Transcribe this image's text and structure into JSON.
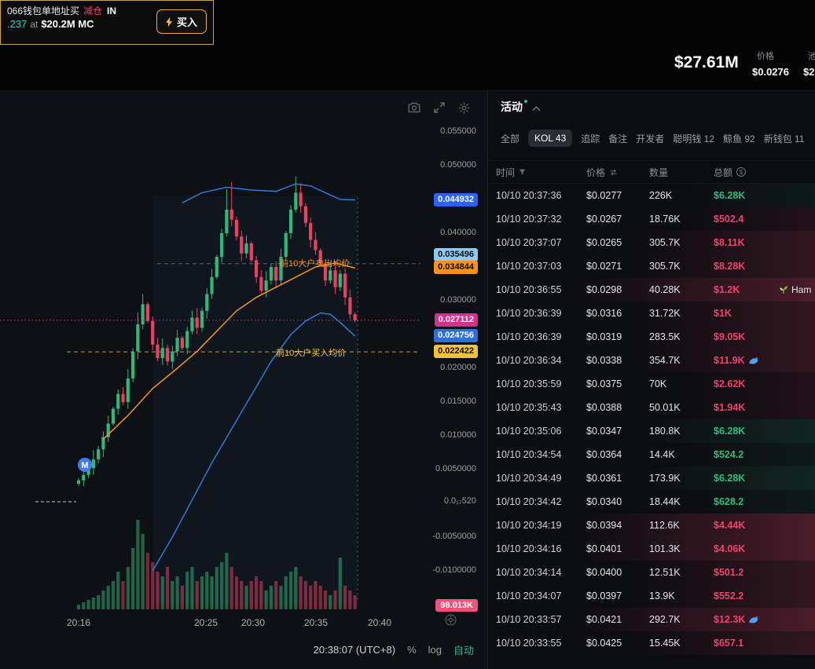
{
  "toast": {
    "line1_prefix": "066钱包单地址买",
    "line1_flag": "减仓",
    "line1_suffix": "IN",
    "line2_value": ".237",
    "line2_at": "at",
    "line2_mc": "$20.2M MC",
    "buy_label": "买入"
  },
  "stats": {
    "market_cap": "$27.61M",
    "price_label": "价格",
    "price_value": "$0.0276",
    "pool_label": "池",
    "pool_value": "$2"
  },
  "chart": {
    "y_ticks": [
      {
        "label": "0.055000",
        "price": 0.055
      },
      {
        "label": "0.050000",
        "price": 0.05
      },
      {
        "label": "0.040000",
        "price": 0.04
      },
      {
        "label": "0.030000",
        "price": 0.03
      },
      {
        "label": "0.020000",
        "price": 0.02
      },
      {
        "label": "0.015000",
        "price": 0.015
      },
      {
        "label": "0.010000",
        "price": 0.01
      },
      {
        "label": "0.0050000",
        "price": 0.005
      },
      {
        "label": "0.0₁₇520",
        "price": 0.0002
      },
      {
        "label": "-0.0050000",
        "price": -0.005
      },
      {
        "label": "-0.0100000",
        "price": -0.01
      }
    ],
    "price_badges": [
      {
        "label": "0.044932",
        "price": 0.044932,
        "bg": "#2962ff",
        "fg": "#ffffff",
        "dy": 0
      },
      {
        "label": "0.035496",
        "price": 0.035496,
        "bg": "#90c9f0",
        "fg": "#0b0e14",
        "dy": -11
      },
      {
        "label": "0.034844",
        "price": 0.034844,
        "bg": "#f7921e",
        "fg": "#0b0e14",
        "dy": 0
      },
      {
        "label": "0.027112",
        "price": 0.027112,
        "bg": "#d6308f",
        "fg": "#ffffff",
        "dy": 0
      },
      {
        "label": "0.024756",
        "price": 0.024756,
        "bg": "#2e6fd8",
        "fg": "#ffffff",
        "dy": 0
      },
      {
        "label": "0.022422",
        "price": 0.022422,
        "bg": "#f5c13d",
        "fg": "#0b0e14",
        "dy": 0
      }
    ],
    "volume_badge": "98.013K",
    "annotations": {
      "sell_avg": "前10大户卖出均价",
      "buy_avg": "前10大户买入均价"
    },
    "marker_label": "M",
    "x_ticks": [
      {
        "label": "20:16",
        "x": 100
      },
      {
        "label": "20:25",
        "x": 262
      },
      {
        "label": "20:30",
        "x": 322
      },
      {
        "label": "20:35",
        "x": 402
      },
      {
        "label": "20:40",
        "x": 483
      }
    ],
    "footer": {
      "clock": "20:38:07 (UTC+8)",
      "percent": "%",
      "log": "log",
      "auto": "自动"
    },
    "chart_data": {
      "type": "candlestick",
      "price_unit": "value/1000 = USD price",
      "open_first": 2.9,
      "closes": [
        3.4,
        4.2,
        5.2,
        6.5,
        8,
        9.8,
        11.8,
        14,
        16.2,
        15,
        18.5,
        22.5,
        26.5,
        29.5,
        27,
        23.5,
        21.5,
        23,
        21,
        22.5,
        24.5,
        23,
        25.5,
        27.5,
        26,
        28.5,
        31,
        33.5,
        36.5,
        40,
        43.5,
        42,
        39.5,
        37,
        38.5,
        36,
        33.5,
        31.5,
        33,
        35,
        33,
        36.5,
        40,
        43.5,
        46,
        44,
        41.5,
        39,
        37.5,
        35.5,
        33,
        34.5,
        32,
        34,
        30.5,
        28,
        27.1
      ],
      "volumes": [
        1,
        1.5,
        2,
        2.5,
        3,
        4,
        5,
        6,
        8,
        6,
        9,
        13,
        19,
        16,
        12,
        10,
        8,
        7,
        9,
        6,
        7,
        5,
        8,
        9,
        6,
        7,
        8,
        7,
        9,
        10,
        12,
        9,
        7,
        6,
        5,
        6,
        7,
        6,
        4,
        5,
        6,
        5,
        7,
        8,
        9,
        7,
        6,
        5,
        6,
        5,
        4,
        3,
        4,
        11,
        5,
        4,
        3
      ],
      "wick_overrides": {
        "12": 28.3,
        "13": 31.0,
        "30": 46.5,
        "31": 47.6,
        "44": 48.4
      },
      "lines": {
        "ma_orange": [
          [
            5,
            9.5
          ],
          [
            10,
            13
          ],
          [
            15,
            17
          ],
          [
            20,
            20
          ],
          [
            24,
            22.5
          ],
          [
            28,
            25.5
          ],
          [
            32,
            28.5
          ],
          [
            36,
            30.5
          ],
          [
            40,
            32
          ],
          [
            44,
            33.5
          ],
          [
            48,
            35
          ],
          [
            52,
            35.6
          ],
          [
            56,
            34.84
          ]
        ],
        "band_upper": [
          [
            21,
            44.5
          ],
          [
            25,
            46
          ],
          [
            30,
            46.8
          ],
          [
            35,
            46.4
          ],
          [
            40,
            46.2
          ],
          [
            44,
            47.3
          ],
          [
            47,
            47
          ],
          [
            50,
            46
          ],
          [
            53,
            45
          ],
          [
            56,
            44.93
          ]
        ],
        "band_lower": [
          [
            15,
            -10
          ],
          [
            19,
            -5
          ],
          [
            23,
            0.5
          ],
          [
            27,
            6
          ],
          [
            31,
            11
          ],
          [
            35,
            16
          ],
          [
            39,
            21
          ],
          [
            43,
            25
          ],
          [
            46,
            27
          ],
          [
            49,
            28.2
          ],
          [
            51,
            28
          ],
          [
            53,
            26.8
          ],
          [
            56,
            24.76
          ]
        ]
      },
      "levels": {
        "current_price": 0.027112,
        "top10_sell_avg": 0.035496,
        "top10_buy_avg": 0.022422
      }
    }
  },
  "activity": {
    "title": "活动",
    "tabs": [
      {
        "label": "全部",
        "active": false
      },
      {
        "label": "KOL 43",
        "active": true
      },
      {
        "label": "追踪",
        "active": false
      },
      {
        "label": "备注",
        "active": false
      },
      {
        "label": "开发者",
        "active": false
      },
      {
        "label": "聪明钱 12",
        "active": false
      },
      {
        "label": "鲸鱼 92",
        "active": false
      },
      {
        "label": "新钱包 11",
        "active": false
      }
    ],
    "columns": {
      "time": "时间",
      "price": "价格",
      "amount": "数量",
      "total": "总额"
    },
    "rows": [
      {
        "time": "10/10 20:37:36",
        "price": "$0.0277",
        "amount": "226K",
        "total": "$6.28K",
        "side": "buy",
        "tint": 1
      },
      {
        "time": "10/10 20:37:32",
        "price": "$0.0267",
        "amount": "18.76K",
        "total": "$502.4",
        "side": "sell",
        "tint": 1
      },
      {
        "time": "10/10 20:37:07",
        "price": "$0.0265",
        "amount": "305.7K",
        "total": "$8.11K",
        "side": "sell",
        "tint": 2
      },
      {
        "time": "10/10 20:37:03",
        "price": "$0.0271",
        "amount": "305.7K",
        "total": "$8.28K",
        "side": "sell",
        "tint": 2
      },
      {
        "time": "10/10 20:36:55",
        "price": "$0.0298",
        "amount": "40.28K",
        "total": "$1.2K",
        "side": "sell",
        "tint": 3,
        "tag": "Ham"
      },
      {
        "time": "10/10 20:36:39",
        "price": "$0.0316",
        "amount": "31.72K",
        "total": "$1K",
        "side": "sell",
        "tint": 2
      },
      {
        "time": "10/10 20:36:39",
        "price": "$0.0319",
        "amount": "283.5K",
        "total": "$9.05K",
        "side": "sell",
        "tint": 2
      },
      {
        "time": "10/10 20:36:34",
        "price": "$0.0338",
        "amount": "354.7K",
        "total": "$11.9K",
        "side": "sell",
        "tint": 2,
        "fish": true
      },
      {
        "time": "10/10 20:35:59",
        "price": "$0.0375",
        "amount": "70K",
        "total": "$2.62K",
        "side": "sell",
        "tint": 1
      },
      {
        "time": "10/10 20:35:43",
        "price": "$0.0388",
        "amount": "50.01K",
        "total": "$1.94K",
        "side": "sell",
        "tint": 1
      },
      {
        "time": "10/10 20:35:06",
        "price": "$0.0347",
        "amount": "180.8K",
        "total": "$6.28K",
        "side": "buy",
        "tint": 2
      },
      {
        "time": "10/10 20:34:54",
        "price": "$0.0364",
        "amount": "14.4K",
        "total": "$524.2",
        "side": "buy",
        "tint": 1
      },
      {
        "time": "10/10 20:34:49",
        "price": "$0.0361",
        "amount": "173.9K",
        "total": "$6.28K",
        "side": "buy",
        "tint": 2
      },
      {
        "time": "10/10 20:34:42",
        "price": "$0.0340",
        "amount": "18.44K",
        "total": "$628.2",
        "side": "buy",
        "tint": 1
      },
      {
        "time": "10/10 20:34:19",
        "price": "$0.0394",
        "amount": "112.6K",
        "total": "$4.44K",
        "side": "sell",
        "tint": 3
      },
      {
        "time": "10/10 20:34:16",
        "price": "$0.0401",
        "amount": "101.3K",
        "total": "$4.06K",
        "side": "sell",
        "tint": 3
      },
      {
        "time": "10/10 20:34:14",
        "price": "$0.0400",
        "amount": "12.51K",
        "total": "$501.2",
        "side": "sell",
        "tint": 2
      },
      {
        "time": "10/10 20:34:07",
        "price": "$0.0397",
        "amount": "13.9K",
        "total": "$552.2",
        "side": "sell",
        "tint": 2
      },
      {
        "time": "10/10 20:33:57",
        "price": "$0.0421",
        "amount": "292.7K",
        "total": "$12.3K",
        "side": "sell",
        "tint": 3,
        "fish": true
      },
      {
        "time": "10/10 20:33:55",
        "price": "$0.0425",
        "amount": "15.45K",
        "total": "$657.1",
        "side": "sell",
        "tint": 2
      }
    ]
  },
  "colors": {
    "buy_green": "#2ebd85",
    "sell_red": "#f0436e",
    "accent_yellow": "#e3b341",
    "band_blue": "#2e7bd6",
    "ma_orange": "#f7921e"
  }
}
